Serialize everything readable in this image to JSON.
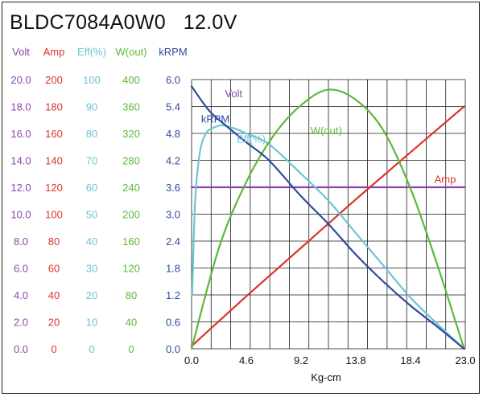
{
  "title": "BLDC7084A0W0   12.0V",
  "chart_data": {
    "type": "line",
    "xlabel": "Kg-cm",
    "xlim": [
      0,
      23.0
    ],
    "x_ticks": [
      "0.0",
      "4.6",
      "9.2",
      "13.8",
      "18.4",
      "23.0"
    ],
    "axes": [
      {
        "name": "Volt",
        "color": "#8e44ad",
        "ticks": [
          "0.0",
          "2.0",
          "4.0",
          "6.0",
          "8.0",
          "10.0",
          "12.0",
          "14.0",
          "16.0",
          "18.0",
          "20.0"
        ]
      },
      {
        "name": "Amp",
        "color": "#d9342b",
        "ticks": [
          "0",
          "20",
          "40",
          "60",
          "80",
          "100",
          "120",
          "140",
          "160",
          "180",
          "200"
        ]
      },
      {
        "name": "Eff(%)",
        "color": "#6cc5d3",
        "ticks": [
          "0",
          "10",
          "20",
          "30",
          "40",
          "50",
          "60",
          "70",
          "80",
          "90",
          "100"
        ]
      },
      {
        "name": "W(out)",
        "color": "#5cb83a",
        "ticks": [
          "0",
          "40",
          "80",
          "120",
          "160",
          "200",
          "240",
          "280",
          "320",
          "360",
          "400"
        ]
      },
      {
        "name": "kRPM",
        "color": "#2e4a9e",
        "ticks": [
          "0.0",
          "0.6",
          "1.2",
          "1.8",
          "2.4",
          "3.0",
          "3.6",
          "4.2",
          "4.8",
          "5.4",
          "6.0"
        ]
      }
    ],
    "series": [
      {
        "name": "Volt",
        "color": "#8e44ad",
        "axis_max": 20,
        "x": [
          0,
          22.9
        ],
        "y": [
          12.0,
          12.0
        ]
      },
      {
        "name": "Amp",
        "color": "#d9342b",
        "axis_max": 200,
        "x": [
          0,
          4.6,
          9.2,
          13.8,
          18.4,
          22.9
        ],
        "y": [
          2,
          39,
          75,
          111,
          146,
          180
        ]
      },
      {
        "name": "Eff(%)",
        "color": "#6cc5d3",
        "axis_max": 100,
        "x": [
          0.05,
          0.3,
          0.7,
          1.2,
          1.8,
          2.5,
          3.5,
          4.6,
          6.5,
          9.2,
          11.5,
          13.8,
          16.1,
          18.4,
          20.7,
          22.9
        ],
        "y": [
          20,
          55,
          73,
          80,
          82,
          83,
          82,
          80,
          76,
          65,
          55,
          43,
          31,
          19,
          9,
          0
        ]
      },
      {
        "name": "W(out)",
        "color": "#5cb83a",
        "axis_max": 400,
        "x": [
          0,
          2.3,
          4.6,
          6.9,
          9.2,
          11.5,
          13.8,
          16.1,
          18.4,
          20.7,
          22.9
        ],
        "y": [
          0,
          150,
          248,
          317,
          362,
          385,
          370,
          325,
          238,
          122,
          0
        ]
      },
      {
        "name": "kRPM",
        "color": "#2e4a9e",
        "axis_max": 6.0,
        "x": [
          0,
          1.5,
          3.0,
          4.6,
          6.5,
          9.2,
          11.5,
          13.8,
          16.1,
          18.4,
          20.7,
          22.9
        ],
        "y": [
          5.85,
          5.3,
          4.95,
          4.6,
          4.2,
          3.4,
          2.78,
          2.1,
          1.5,
          0.96,
          0.48,
          0
        ]
      }
    ],
    "annotations": [
      {
        "text": "Volt",
        "color": "#8e44ad",
        "x": 2.8,
        "y_frac": 0.935
      },
      {
        "text": "kRPM",
        "color": "#2e4a9e",
        "x": 0.8,
        "y_frac": 0.84
      },
      {
        "text": "Eff(%)",
        "color": "#6cc5d3",
        "x": 3.8,
        "y_frac": 0.765
      },
      {
        "text": "W(out)",
        "color": "#5cb83a",
        "x": 10.0,
        "y_frac": 0.797
      },
      {
        "text": "Amp",
        "color": "#d9342b",
        "x": 20.4,
        "y_frac": 0.617
      }
    ],
    "grid": true
  }
}
